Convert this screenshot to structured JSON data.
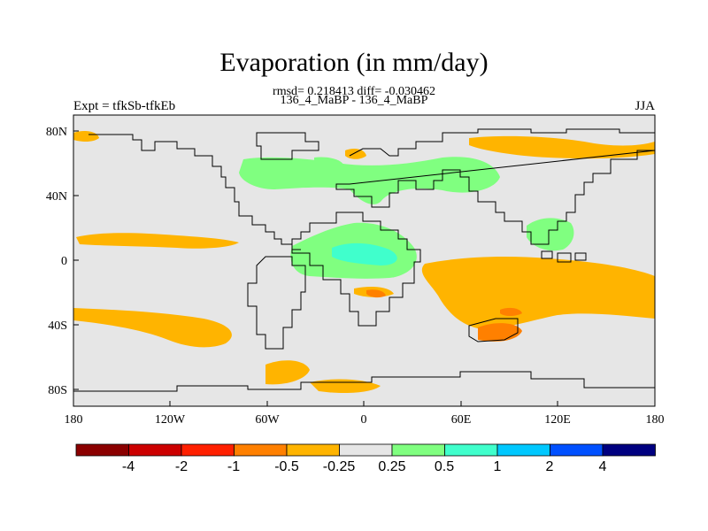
{
  "title": "Evaporation (in mm/day)",
  "stats": "rmsd= 0.218413 diff= -0.030462",
  "case": "136_4_MaBP - 136_4_MaBP",
  "experiment": "Expt = tfkSb-tfkEb",
  "season": "JJA",
  "map": {
    "lon_range": [
      -180,
      180
    ],
    "lat_range": [
      -90,
      90
    ],
    "background_color": "#e6e6e6",
    "lat_ticks": [
      "80N",
      "40N",
      "0",
      "40S",
      "80S"
    ],
    "lon_ticks": [
      "180",
      "120W",
      "60W",
      "0",
      "60E",
      "120E",
      "180"
    ]
  },
  "colorbar": {
    "colors": [
      "#8b0000",
      "#cc0000",
      "#ff2000",
      "#ff8000",
      "#ffb400",
      "#e6e6e6",
      "#80ff80",
      "#40ffcc",
      "#00c8ff",
      "#0050ff",
      "#000080"
    ],
    "labels": [
      "-4",
      "-2",
      "-1",
      "-0.5",
      "-0.25",
      "0.25",
      "0.5",
      "1",
      "2",
      "4"
    ]
  }
}
